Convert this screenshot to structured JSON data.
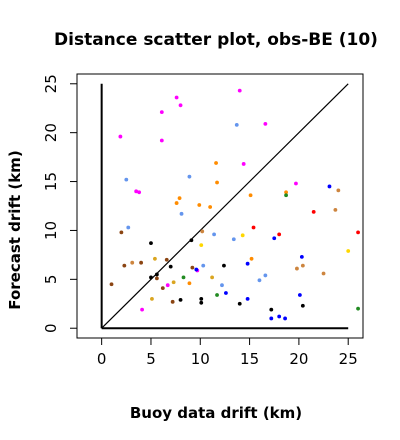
{
  "chart_data": {
    "type": "scatter",
    "title": "Distance scatter plot, obs-BE (10)",
    "xlabel": "Buoy data drift (km)",
    "ylabel": "Forecast drift (km)",
    "xlim": [
      -2.5,
      26.5
    ],
    "ylim": [
      -1,
      26
    ],
    "xticks": [
      0,
      5,
      10,
      15,
      20,
      25
    ],
    "yticks": [
      0,
      5,
      10,
      15,
      20,
      25
    ],
    "grid": false,
    "reference_lines": [
      {
        "name": "identity",
        "x": [
          0,
          25
        ],
        "y": [
          0,
          25
        ],
        "color": "#000000"
      },
      {
        "name": "x-axis-line",
        "x": [
          0,
          25
        ],
        "y": [
          0,
          0
        ],
        "color": "#000000"
      },
      {
        "name": "y-axis-line",
        "x": [
          0,
          0
        ],
        "y": [
          0,
          25
        ],
        "color": "#000000"
      }
    ],
    "points": [
      {
        "x": 1.9,
        "y": 19.6,
        "color": "#ff00ff"
      },
      {
        "x": 6.1,
        "y": 22.1,
        "color": "#ff00ff"
      },
      {
        "x": 7.6,
        "y": 23.6,
        "color": "#ff00ff"
      },
      {
        "x": 8.0,
        "y": 22.8,
        "color": "#ff00ff"
      },
      {
        "x": 14.0,
        "y": 24.3,
        "color": "#ff00ff"
      },
      {
        "x": 16.6,
        "y": 20.9,
        "color": "#ff00ff"
      },
      {
        "x": 6.1,
        "y": 19.2,
        "color": "#ff00ff"
      },
      {
        "x": 14.4,
        "y": 16.8,
        "color": "#ff00ff"
      },
      {
        "x": 19.7,
        "y": 14.8,
        "color": "#ff00ff"
      },
      {
        "x": 3.5,
        "y": 14.0,
        "color": "#ff00ff"
      },
      {
        "x": 3.8,
        "y": 13.9,
        "color": "#ff00ff"
      },
      {
        "x": 4.1,
        "y": 1.9,
        "color": "#ff00ff"
      },
      {
        "x": 6.7,
        "y": 4.4,
        "color": "#ff00ff"
      },
      {
        "x": 9.7,
        "y": 5.9,
        "color": "#ff00ff"
      },
      {
        "x": 2.5,
        "y": 15.2,
        "color": "#6495ed"
      },
      {
        "x": 2.7,
        "y": 10.3,
        "color": "#6495ed"
      },
      {
        "x": 8.1,
        "y": 11.7,
        "color": "#6495ed"
      },
      {
        "x": 8.9,
        "y": 15.5,
        "color": "#6495ed"
      },
      {
        "x": 13.7,
        "y": 20.8,
        "color": "#6495ed"
      },
      {
        "x": 13.4,
        "y": 9.1,
        "color": "#6495ed"
      },
      {
        "x": 10.3,
        "y": 6.4,
        "color": "#6495ed"
      },
      {
        "x": 16.0,
        "y": 4.9,
        "color": "#6495ed"
      },
      {
        "x": 16.6,
        "y": 5.4,
        "color": "#6495ed"
      },
      {
        "x": 11.4,
        "y": 9.6,
        "color": "#6495ed"
      },
      {
        "x": 12.2,
        "y": 4.4,
        "color": "#6495ed"
      },
      {
        "x": 7.6,
        "y": 12.8,
        "color": "#ff8c00"
      },
      {
        "x": 7.9,
        "y": 13.3,
        "color": "#ff8c00"
      },
      {
        "x": 9.9,
        "y": 12.6,
        "color": "#ff8c00"
      },
      {
        "x": 11.0,
        "y": 12.4,
        "color": "#ff8c00"
      },
      {
        "x": 11.6,
        "y": 16.9,
        "color": "#ff8c00"
      },
      {
        "x": 11.7,
        "y": 14.9,
        "color": "#ff8c00"
      },
      {
        "x": 15.1,
        "y": 13.6,
        "color": "#ff8c00"
      },
      {
        "x": 18.7,
        "y": 13.9,
        "color": "#ff8c00"
      },
      {
        "x": 24.0,
        "y": 14.1,
        "color": "#cd853f"
      },
      {
        "x": 23.7,
        "y": 12.1,
        "color": "#cd853f"
      },
      {
        "x": 22.5,
        "y": 5.6,
        "color": "#cd853f"
      },
      {
        "x": 19.8,
        "y": 6.1,
        "color": "#cd853f"
      },
      {
        "x": 20.4,
        "y": 6.4,
        "color": "#cd853f"
      },
      {
        "x": 3.1,
        "y": 6.7,
        "color": "#cd853f"
      },
      {
        "x": 1.0,
        "y": 4.5,
        "color": "#8b4513"
      },
      {
        "x": 2.0,
        "y": 9.8,
        "color": "#8b4513"
      },
      {
        "x": 2.3,
        "y": 6.4,
        "color": "#8b4513"
      },
      {
        "x": 4.0,
        "y": 6.7,
        "color": "#8b4513"
      },
      {
        "x": 6.6,
        "y": 7.0,
        "color": "#8b4513"
      },
      {
        "x": 7.2,
        "y": 2.7,
        "color": "#8b4513"
      },
      {
        "x": 9.2,
        "y": 6.2,
        "color": "#8b4513"
      },
      {
        "x": 5.6,
        "y": 5.1,
        "color": "#8b4513"
      },
      {
        "x": 6.2,
        "y": 4.1,
        "color": "#8b4513"
      },
      {
        "x": 5.4,
        "y": 7.1,
        "color": "#daa520"
      },
      {
        "x": 5.1,
        "y": 3.0,
        "color": "#daa520"
      },
      {
        "x": 7.3,
        "y": 4.7,
        "color": "#daa520"
      },
      {
        "x": 10.1,
        "y": 8.5,
        "color": "#ffd700"
      },
      {
        "x": 14.3,
        "y": 9.5,
        "color": "#ffd700"
      },
      {
        "x": 25.0,
        "y": 7.9,
        "color": "#ffd700"
      },
      {
        "x": 15.2,
        "y": 7.1,
        "color": "#ff8c00"
      },
      {
        "x": 10.2,
        "y": 9.9,
        "color": "#cd853f"
      },
      {
        "x": 8.9,
        "y": 4.6,
        "color": "#ff8c00"
      },
      {
        "x": 11.2,
        "y": 5.2,
        "color": "#daa520"
      },
      {
        "x": 5.0,
        "y": 8.7,
        "color": "#000000"
      },
      {
        "x": 5.6,
        "y": 5.5,
        "color": "#000000"
      },
      {
        "x": 5.0,
        "y": 5.2,
        "color": "#000000"
      },
      {
        "x": 7.0,
        "y": 6.3,
        "color": "#000000"
      },
      {
        "x": 8.0,
        "y": 2.9,
        "color": "#000000"
      },
      {
        "x": 9.1,
        "y": 9.0,
        "color": "#000000"
      },
      {
        "x": 10.1,
        "y": 3.0,
        "color": "#000000"
      },
      {
        "x": 10.1,
        "y": 2.6,
        "color": "#000000"
      },
      {
        "x": 12.4,
        "y": 6.4,
        "color": "#000000"
      },
      {
        "x": 14.0,
        "y": 2.5,
        "color": "#000000"
      },
      {
        "x": 17.2,
        "y": 1.9,
        "color": "#000000"
      },
      {
        "x": 20.4,
        "y": 2.3,
        "color": "#000000"
      },
      {
        "x": 11.7,
        "y": 3.4,
        "color": "#228b22"
      },
      {
        "x": 8.3,
        "y": 5.2,
        "color": "#228b22"
      },
      {
        "x": 18.7,
        "y": 13.6,
        "color": "#228b22"
      },
      {
        "x": 26.0,
        "y": 2.0,
        "color": "#228b22"
      },
      {
        "x": 15.4,
        "y": 10.3,
        "color": "#ff0000"
      },
      {
        "x": 21.5,
        "y": 11.9,
        "color": "#ff0000"
      },
      {
        "x": 26.0,
        "y": 9.8,
        "color": "#ff0000"
      },
      {
        "x": 18.0,
        "y": 9.6,
        "color": "#ff0000"
      },
      {
        "x": 17.5,
        "y": 9.2,
        "color": "#0000ff"
      },
      {
        "x": 20.3,
        "y": 7.3,
        "color": "#0000ff"
      },
      {
        "x": 23.1,
        "y": 14.5,
        "color": "#0000ff"
      },
      {
        "x": 14.8,
        "y": 6.6,
        "color": "#0000ff"
      },
      {
        "x": 14.8,
        "y": 3.0,
        "color": "#0000ff"
      },
      {
        "x": 17.2,
        "y": 1.0,
        "color": "#0000ff"
      },
      {
        "x": 18.0,
        "y": 1.2,
        "color": "#0000ff"
      },
      {
        "x": 18.6,
        "y": 1.0,
        "color": "#0000ff"
      },
      {
        "x": 20.1,
        "y": 3.4,
        "color": "#0000ff"
      },
      {
        "x": 9.6,
        "y": 6.0,
        "color": "#0000ff"
      },
      {
        "x": 12.6,
        "y": 3.6,
        "color": "#0000ff"
      }
    ]
  }
}
